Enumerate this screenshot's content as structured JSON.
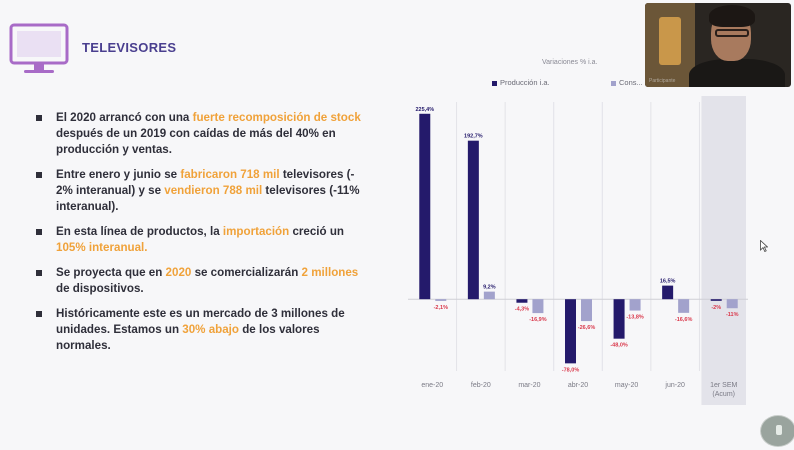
{
  "slide": {
    "title": "TELEVISORES",
    "bullets": [
      [
        {
          "t": "El 2020 arrancó con una ",
          "h": false
        },
        {
          "t": "fuerte recomposición de stock",
          "h": true
        },
        {
          "t": " después de un 2019 con caídas de más del 40% en producción y ventas.",
          "h": false
        }
      ],
      [
        {
          "t": "Entre enero y junio se ",
          "h": false
        },
        {
          "t": "fabricaron 718 mil",
          "h": true
        },
        {
          "t": " televisores (- 2% interanual) y se ",
          "h": false
        },
        {
          "t": "vendieron 788 mil",
          "h": true
        },
        {
          "t": " televisores (-11% interanual).",
          "h": false
        }
      ],
      [
        {
          "t": "En esta línea de productos, la ",
          "h": false
        },
        {
          "t": "importación",
          "h": true
        },
        {
          "t": " creció un ",
          "h": false
        },
        {
          "t": "105% interanual.",
          "h": true
        }
      ],
      [
        {
          "t": "Se proyecta que en ",
          "h": false
        },
        {
          "t": "2020",
          "h": true
        },
        {
          "t": " se comercializarán ",
          "h": false
        },
        {
          "t": "2 millones",
          "h": true
        },
        {
          "t": " de dispositivos.",
          "h": false
        }
      ],
      [
        {
          "t": "Históricamente este es un mercado de 3 millones de unidades. Estamos un ",
          "h": false
        },
        {
          "t": "30% abajo",
          "h": true
        },
        {
          "t": " de los valores normales.",
          "h": false
        }
      ]
    ]
  },
  "chart_data": {
    "type": "bar",
    "title": "Variaciones % i.a.",
    "categories": [
      "ene-20",
      "feb-20",
      "mar-20",
      "abr-20",
      "may-20",
      "jun-20",
      "1er SEM"
    ],
    "category_sublabels": [
      "",
      "",
      "",
      "",
      "",
      "",
      "(Acum)"
    ],
    "highlight_category": "1er SEM",
    "series": [
      {
        "name": "Producción i.a.",
        "color": "#241a6b",
        "values": [
          225.4,
          192.7,
          -4.3,
          -78.0,
          -48.0,
          16.5,
          -2.0
        ],
        "labels": [
          "225,4%",
          "192,7%",
          "-4,3%",
          "-78,0%",
          "-48,0%",
          "16,5%",
          "-2%"
        ]
      },
      {
        "name": "Cons...",
        "color": "#a2a2cc",
        "values": [
          -2.1,
          9.2,
          -16.9,
          -26.6,
          -13.8,
          -16.6,
          -11.0
        ],
        "labels": [
          "-2,1%",
          "9,2%",
          "-16,9%",
          "-26,6%",
          "-13,8%",
          "-16,6%",
          "-11%"
        ]
      }
    ],
    "ylim": [
      -80,
      230
    ]
  },
  "colors": {
    "accent": "#4a3f8f",
    "highlight": "#f0a23a",
    "tv_icon": "#a86bc7",
    "negative_label": "#d9374a",
    "positive_label": "#241a6b"
  },
  "icons": {
    "header": "television-icon",
    "cursor": "mouse-cursor-icon",
    "nav": "slide-nav-icon"
  },
  "webcam": {
    "label": "Participante"
  }
}
